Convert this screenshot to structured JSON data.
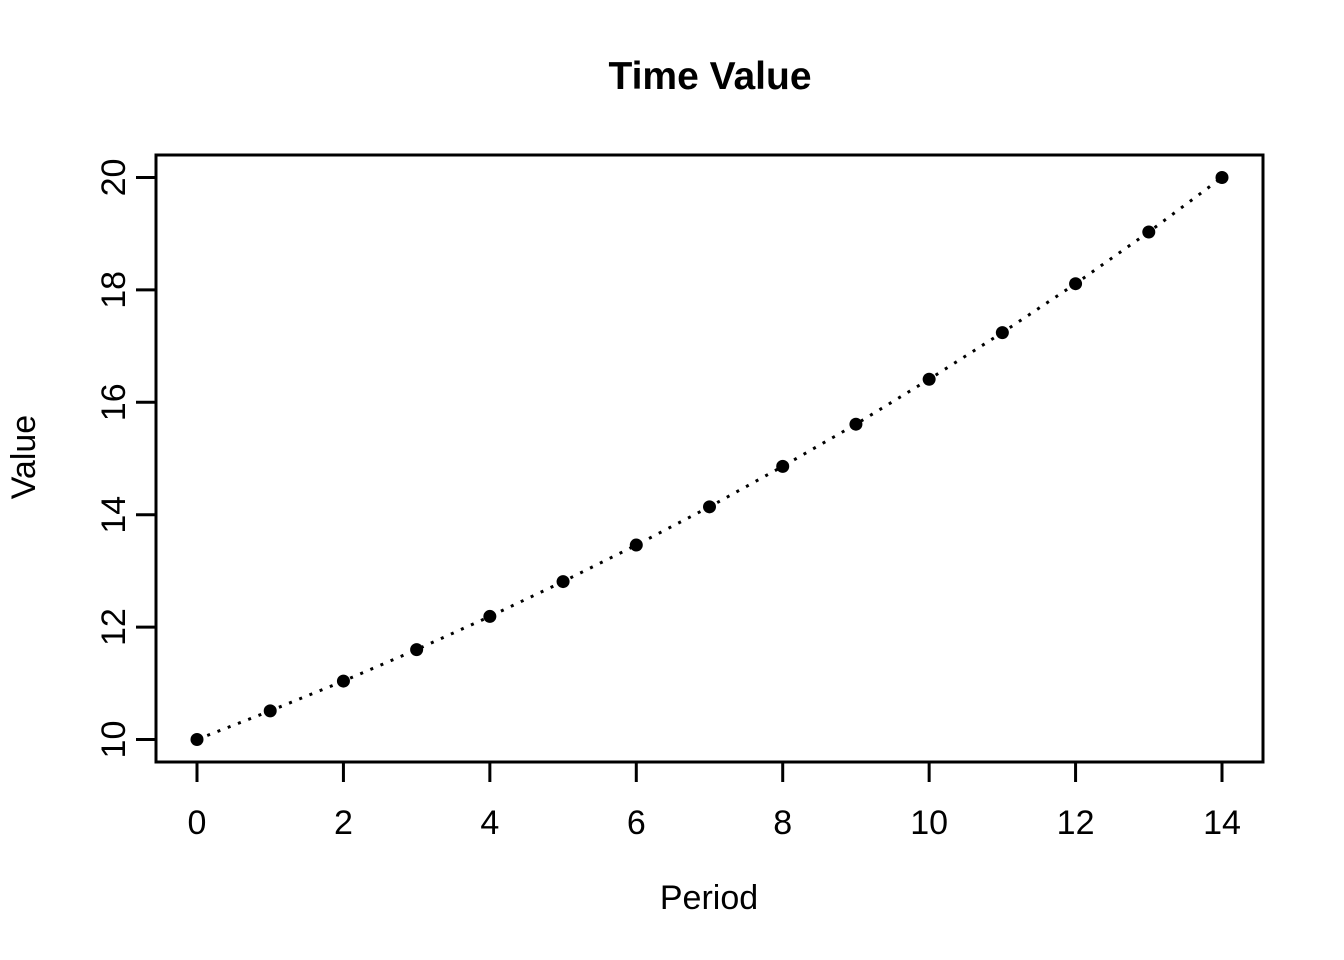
{
  "figure": {
    "background": "#ffffff"
  },
  "chart_data": {
    "type": "line",
    "title": "Time Value",
    "xlabel": "Period",
    "ylabel": "Value",
    "x": [
      0,
      1,
      2,
      3,
      4,
      5,
      6,
      7,
      8,
      9,
      10,
      11,
      12,
      13,
      14
    ],
    "y": [
      10,
      10.51,
      11.04,
      11.6,
      12.19,
      12.81,
      13.46,
      14.14,
      14.86,
      15.61,
      16.41,
      17.24,
      18.11,
      19.03,
      20
    ],
    "xticks": [
      0,
      2,
      4,
      6,
      8,
      10,
      12,
      14
    ],
    "yticks": [
      10,
      12,
      14,
      16,
      18,
      20
    ],
    "xlim": [
      -0.56,
      14.56
    ],
    "ylim": [
      9.6,
      20.4
    ],
    "grid": false,
    "line_style": "dotted",
    "marker": "filled-circle",
    "series_color": "#000000",
    "axis_color": "#000000",
    "background": "#ffffff"
  }
}
